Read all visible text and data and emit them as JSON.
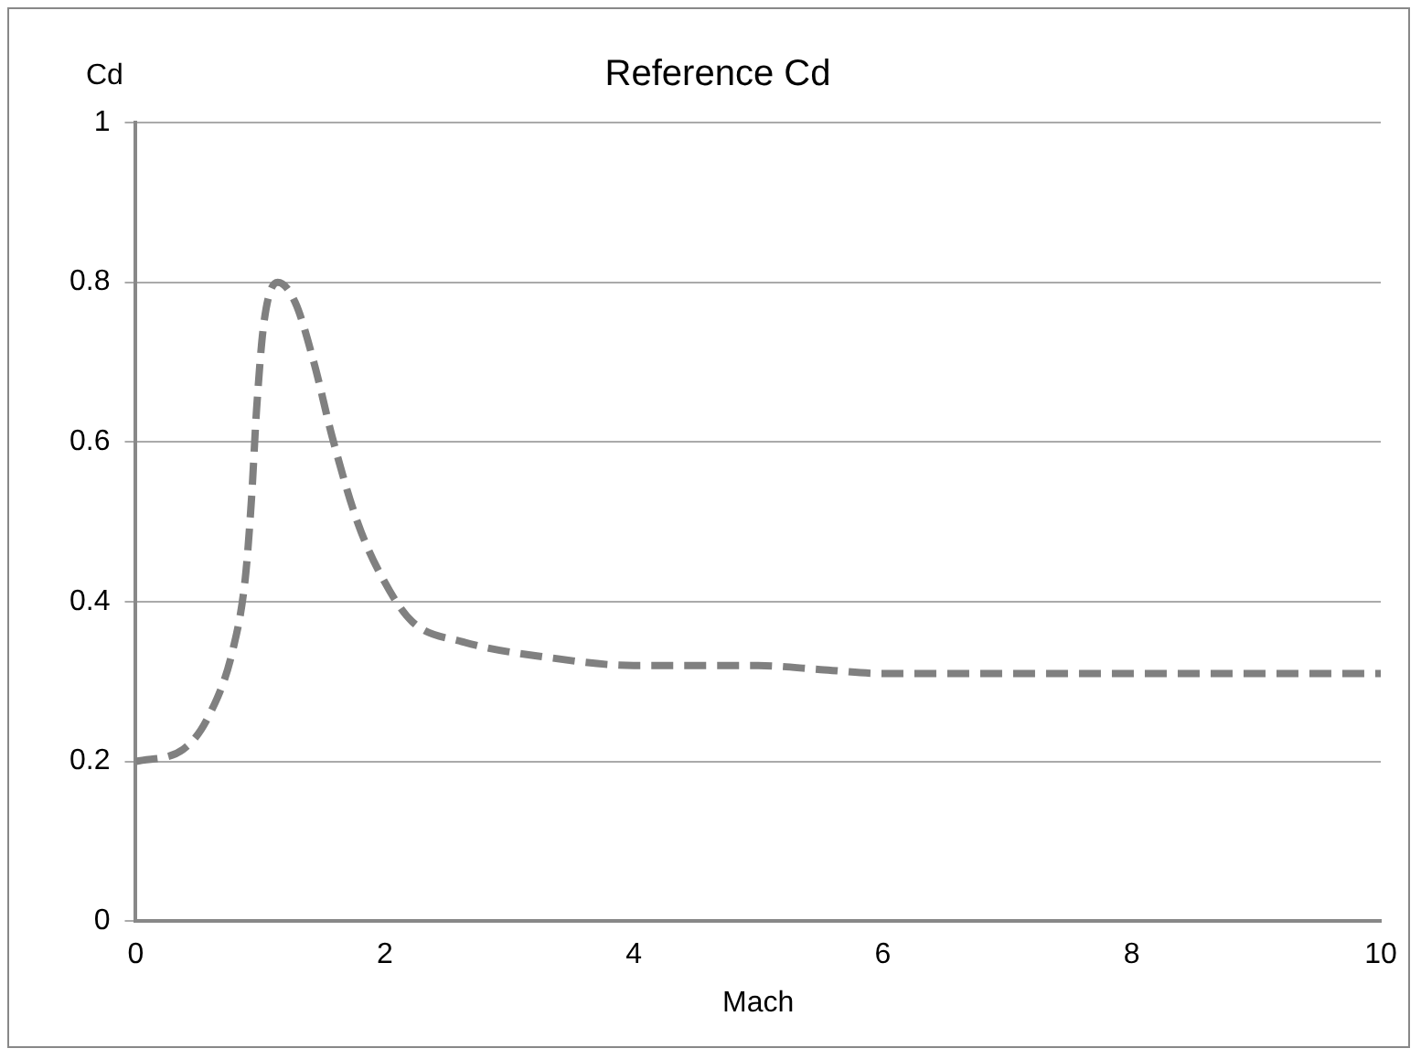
{
  "chart_data": {
    "type": "line",
    "title": "Reference Cd",
    "xlabel": "Mach",
    "ylabel": "Cd",
    "series": [
      {
        "color": "#808080",
        "line_style": "dashed",
        "x": [
          0,
          0.38,
          0.58,
          0.78,
          0.88,
          0.93,
          0.97,
          1.03,
          1.14,
          1.28,
          1.43,
          1.58,
          1.78,
          1.98,
          2.22,
          2.62,
          3.32,
          4,
          5,
          5.5,
          6,
          8,
          10
        ],
        "values": [
          0.2,
          0.215,
          0.255,
          0.34,
          0.43,
          0.53,
          0.64,
          0.75,
          0.8,
          0.775,
          0.7,
          0.605,
          0.5,
          0.43,
          0.375,
          0.35,
          0.33,
          0.32,
          0.32,
          0.315,
          0.31,
          0.31,
          0.31
        ]
      }
    ],
    "xlim": [
      0,
      10
    ],
    "xticks": [
      0,
      2,
      4,
      6,
      8,
      10
    ],
    "ylim": [
      0,
      1
    ],
    "yticks": [
      0,
      0.2,
      0.4,
      0.6,
      0.8,
      1
    ],
    "grid": "y",
    "legend": false,
    "marker": "none"
  }
}
